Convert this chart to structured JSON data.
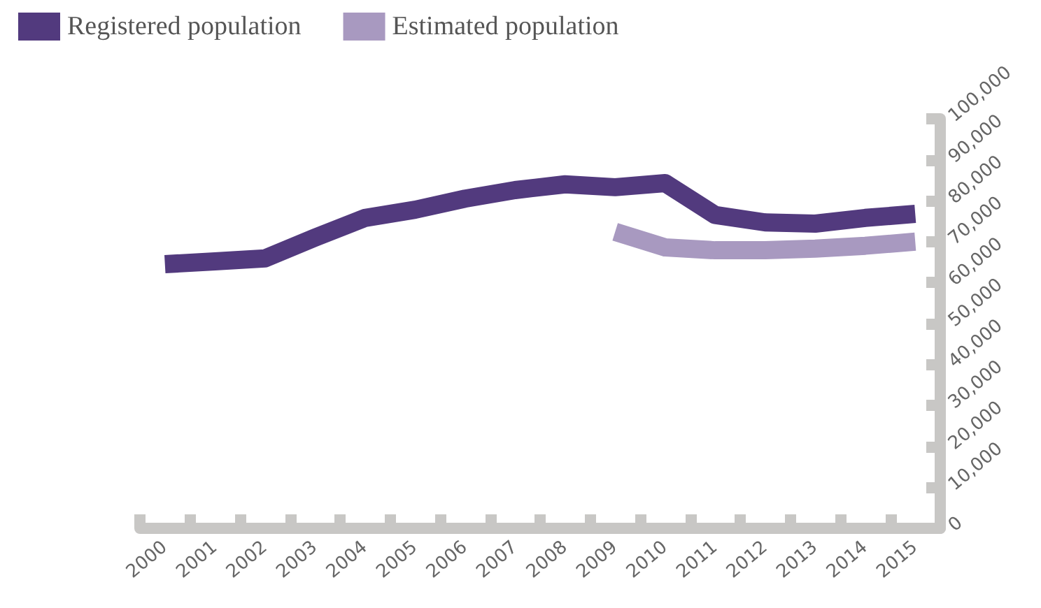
{
  "chart_data": {
    "type": "line",
    "categories": [
      "2000",
      "2001",
      "2002",
      "2003",
      "2004",
      "2005",
      "2006",
      "2007",
      "2008",
      "2009",
      "2010",
      "2011",
      "2012",
      "2013",
      "2014",
      "2015"
    ],
    "series": [
      {
        "name": "Registered population",
        "color": "#523a7e",
        "values": [
          64500,
          65200,
          65900,
          71000,
          75800,
          77800,
          80500,
          82600,
          84000,
          83300,
          84300,
          76500,
          74700,
          74400,
          75800,
          76800
        ]
      },
      {
        "name": "Estimated population",
        "color": "#a899c0",
        "values": [
          null,
          null,
          null,
          null,
          null,
          null,
          null,
          null,
          null,
          72400,
          68600,
          67900,
          67900,
          68300,
          69000,
          70000
        ]
      }
    ],
    "ylim": [
      0,
      100000
    ],
    "yticks": [
      0,
      {
        "value": 10000,
        "label": "10,000"
      },
      {
        "value": 20000,
        "label": "20,000"
      },
      {
        "value": 30000,
        "label": "30,000"
      },
      {
        "value": 40000,
        "label": "40,000"
      },
      {
        "value": 50000,
        "label": "50,000"
      },
      {
        "value": 60000,
        "label": "60,000"
      },
      {
        "value": 70000,
        "label": "70,000"
      },
      {
        "value": 80000,
        "label": "80,000"
      },
      {
        "value": 90000,
        "label": "90,000"
      },
      {
        "value": 100000,
        "label": "100,000"
      }
    ],
    "grid": false,
    "legend": "top left",
    "marker": "none",
    "line_style": "solid"
  }
}
